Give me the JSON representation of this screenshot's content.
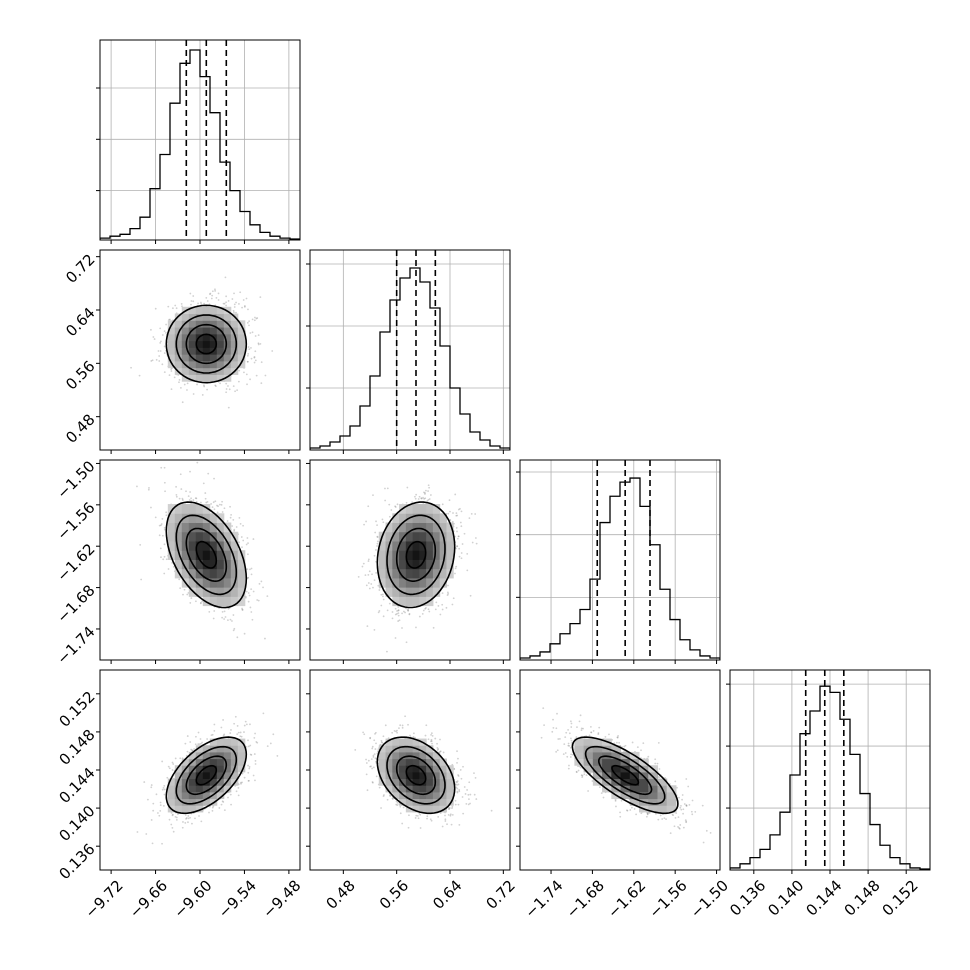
{
  "chart_data": {
    "type": "corner",
    "grid": true,
    "parameters": [
      {
        "range": [
          -9.735,
          -9.465
        ],
        "ticks": [
          -9.72,
          -9.66,
          -9.6,
          -9.54,
          -9.48
        ],
        "tick_labels": [
          "−9.72",
          "−9.66",
          "−9.60",
          "−9.54",
          "−9.48"
        ],
        "quantiles": [
          -9.6185,
          -9.5915,
          -9.5645
        ],
        "hist": [
          1,
          2,
          3,
          6,
          12,
          27,
          45,
          72,
          93,
          100,
          86,
          67,
          41,
          26,
          15,
          8,
          4,
          2,
          1,
          0.5
        ],
        "hist_ymax": 100,
        "hist_ticks": [
          26,
          53,
          80
        ]
      },
      {
        "range": [
          0.43,
          0.73
        ],
        "ticks": [
          0.48,
          0.56,
          0.64,
          0.72
        ],
        "tick_labels": [
          "0.48",
          "0.56",
          "0.64",
          "0.72"
        ],
        "quantiles": [
          0.56,
          0.589,
          0.618
        ],
        "hist": [
          1,
          2,
          4,
          7,
          12,
          22,
          37,
          59,
          75,
          86,
          91,
          84,
          71,
          52,
          31,
          18,
          9,
          5,
          2,
          1
        ],
        "hist_ymax": 95,
        "hist_ticks": [
          31,
          62,
          93
        ]
      },
      {
        "range": [
          -1.785,
          -1.495
        ],
        "ticks": [
          -1.74,
          -1.68,
          -1.62,
          -1.56,
          -1.5
        ],
        "tick_labels": [
          "−1.74",
          "−1.68",
          "−1.62",
          "−1.56",
          "−1.50"
        ],
        "quantiles": [
          -1.673,
          -1.6325,
          -1.5965
        ],
        "hist": [
          1,
          2,
          4,
          8,
          13,
          18,
          25,
          40,
          68,
          81,
          88,
          90,
          76,
          57,
          35,
          20,
          10,
          5,
          2,
          1
        ],
        "hist_ymax": 94,
        "hist_ticks": [
          31,
          62,
          93
        ]
      },
      {
        "range": [
          0.1335,
          0.1545
        ],
        "ticks": [
          0.136,
          0.14,
          0.144,
          0.148,
          0.152
        ],
        "tick_labels": [
          "0.136",
          "0.140",
          "0.144",
          "0.148",
          "0.152"
        ],
        "quantiles": [
          0.14145,
          0.14345,
          0.14545
        ],
        "hist": [
          1,
          3,
          6,
          10,
          17,
          28,
          46,
          66,
          77,
          89,
          86,
          73,
          56,
          37,
          22,
          12,
          6,
          3,
          1,
          0.5
        ],
        "hist_ymax": 92,
        "hist_ticks": [
          30,
          60,
          90
        ]
      }
    ],
    "pairs": [
      {
        "row": 1,
        "col": 0,
        "rho": 0.0
      },
      {
        "row": 2,
        "col": 0,
        "rho": -0.45
      },
      {
        "row": 2,
        "col": 1,
        "rho": 0.15
      },
      {
        "row": 3,
        "col": 0,
        "rho": 0.55
      },
      {
        "row": 3,
        "col": 1,
        "rho": -0.35
      },
      {
        "row": 3,
        "col": 2,
        "rho": -0.75
      }
    ]
  }
}
